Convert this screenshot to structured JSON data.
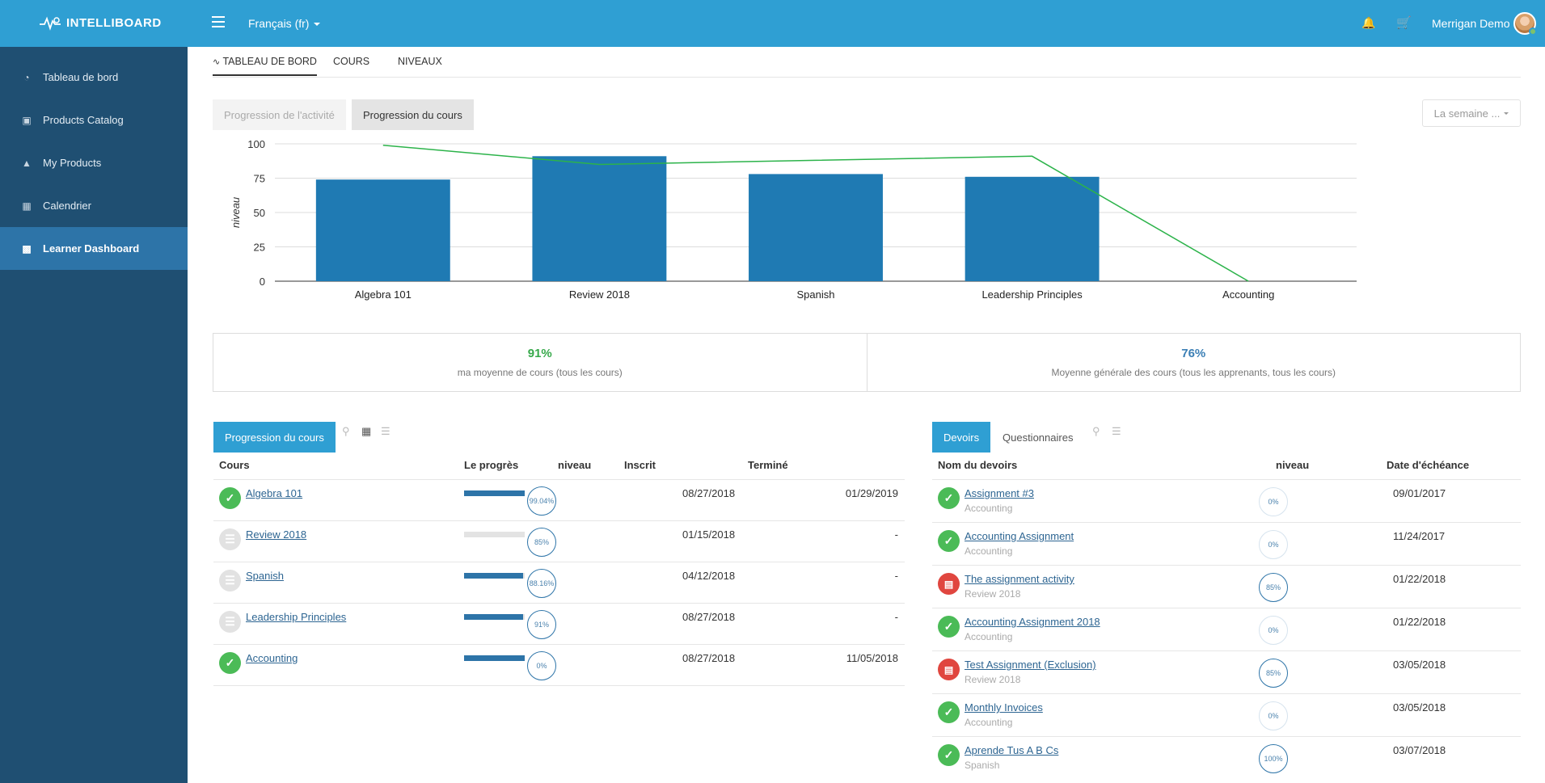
{
  "topbar": {
    "brand": "INTELLIBOARD",
    "language": "Français (fr)",
    "user_name": "Merrigan Demo"
  },
  "sidebar": {
    "items": [
      {
        "label": "Tableau de bord",
        "icon": "dashboard-icon"
      },
      {
        "label": "Products Catalog",
        "icon": "briefcase-icon"
      },
      {
        "label": "My Products",
        "icon": "graduation-cap-icon"
      },
      {
        "label": "Calendrier",
        "icon": "calendar-icon"
      },
      {
        "label": "Learner Dashboard",
        "icon": "bar-chart-icon",
        "active": true
      }
    ]
  },
  "tabs": {
    "dashboard": "TABLEAU DE BORD",
    "courses": "COURS",
    "levels": "NIVEAUX"
  },
  "chart_controls": {
    "activity_progress": "Progression de l'activité",
    "course_progress": "Progression du cours",
    "period": "La semaine ..."
  },
  "chart_data": {
    "type": "bar",
    "categories": [
      "Algebra 101",
      "Review 2018",
      "Spanish",
      "Leadership Principles",
      "Accounting"
    ],
    "series": [
      {
        "type": "bar",
        "values": [
          74,
          91,
          78,
          76,
          0
        ],
        "color": "#1f7ab3"
      },
      {
        "type": "line",
        "values": [
          99,
          85,
          88,
          91,
          0
        ],
        "color": "#2cb34a"
      }
    ],
    "ylabel": "niveau",
    "ylim": [
      0,
      100
    ],
    "yticks": [
      0,
      25,
      50,
      75,
      100
    ]
  },
  "stats": {
    "my_average": {
      "value": "91%",
      "label": "ma moyenne de cours (tous les cours)",
      "color": "#37a94b"
    },
    "global_average": {
      "value": "76%",
      "label": "Moyenne générale des cours (tous les apprenants, tous les cours)",
      "color": "#3b7fb5"
    }
  },
  "courses_panel": {
    "tab": "Progression du cours",
    "columns": [
      "Cours",
      "Le progrès",
      "niveau",
      "Inscrit",
      "Terminé"
    ],
    "rows": [
      {
        "name": "Algebra 101",
        "status": "complete",
        "progress": 1.0,
        "level": "99.04%",
        "enrolled": "08/27/2018",
        "completed": "01/29/2019"
      },
      {
        "name": "Review 2018",
        "status": "in-progress",
        "progress": 0.0,
        "level": "85%",
        "enrolled": "01/15/2018",
        "completed": "-"
      },
      {
        "name": "Spanish",
        "status": "in-progress",
        "progress": 0.97,
        "level": "88.16%",
        "enrolled": "04/12/2018",
        "completed": "-"
      },
      {
        "name": "Leadership Principles",
        "status": "in-progress",
        "progress": 0.97,
        "level": "91%",
        "enrolled": "08/27/2018",
        "completed": "-"
      },
      {
        "name": "Accounting",
        "status": "complete",
        "progress": 1.0,
        "level": "0%",
        "enrolled": "08/27/2018",
        "completed": "11/05/2018"
      }
    ]
  },
  "assignments_panel": {
    "tab_assignments": "Devoirs",
    "tab_quizzes": "Questionnaires",
    "columns": [
      "Nom du devoirs",
      "niveau",
      "Date d'échéance"
    ],
    "rows": [
      {
        "name": "Assignment #3",
        "course": "Accounting",
        "status": "complete",
        "level": "0%",
        "due": "09/01/2017"
      },
      {
        "name": "Accounting Assignment",
        "course": "Accounting",
        "status": "complete",
        "level": "0%",
        "due": "11/24/2017"
      },
      {
        "name": "The assignment activity",
        "course": "Review 2018",
        "status": "pending",
        "level": "85%",
        "due": "01/22/2018"
      },
      {
        "name": "Accounting Assignment 2018",
        "course": "Accounting",
        "status": "complete",
        "level": "0%",
        "due": "01/22/2018"
      },
      {
        "name": "Test Assignment (Exclusion)",
        "course": "Review 2018",
        "status": "pending",
        "level": "85%",
        "due": "03/05/2018"
      },
      {
        "name": "Monthly Invoices",
        "course": "Accounting",
        "status": "complete",
        "level": "0%",
        "due": "03/05/2018"
      },
      {
        "name": "Aprende Tus A B Cs",
        "course": "Spanish",
        "status": "complete",
        "level": "100%",
        "due": "03/07/2018"
      }
    ]
  }
}
